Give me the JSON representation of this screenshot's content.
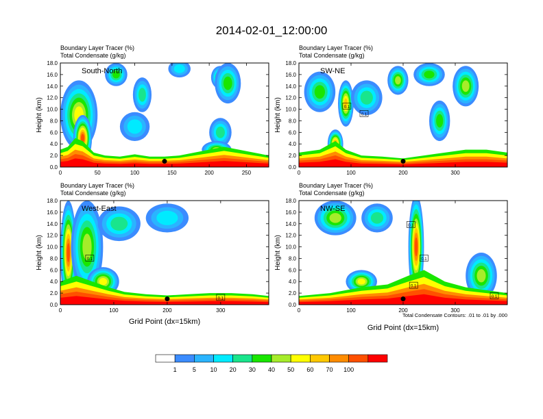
{
  "title": "2014-02-01_12:00:00",
  "chart_data": [
    {
      "type": "heatmap",
      "label": "South-North",
      "title_line1": "Boundary Layer Tracer   (%)",
      "title_line2": "Total Condensate   (g/kg)",
      "ylabel": "Height (km)",
      "xlim": [
        0,
        280
      ],
      "ylim": [
        0,
        18
      ],
      "xticks": [
        0,
        50,
        100,
        150,
        200,
        250
      ],
      "yticks": [
        0,
        2,
        4,
        6,
        8,
        10,
        12,
        14,
        16,
        18
      ],
      "ytick_labels": [
        "0.0",
        "2.0",
        "4.0",
        "6.0",
        "8.0",
        "10.0",
        "12.0",
        "14.0",
        "16.0",
        "18.0"
      ],
      "marker": {
        "x": 140,
        "y": 1.0
      },
      "surface_layer": [
        [
          0,
          3.0
        ],
        [
          10,
          3.5
        ],
        [
          20,
          5.0
        ],
        [
          30,
          4.5
        ],
        [
          45,
          2.5
        ],
        [
          60,
          2.0
        ],
        [
          80,
          1.8
        ],
        [
          100,
          2.2
        ],
        [
          120,
          1.8
        ],
        [
          140,
          1.8
        ],
        [
          160,
          2.0
        ],
        [
          180,
          2.5
        ],
        [
          200,
          3.0
        ],
        [
          220,
          3.5
        ],
        [
          240,
          3.0
        ],
        [
          260,
          2.5
        ],
        [
          280,
          2.0
        ]
      ],
      "blobs": [
        {
          "x": 25,
          "y": 9,
          "w": 50,
          "h": 12,
          "level": 40
        },
        {
          "x": 30,
          "y": 5,
          "w": 25,
          "h": 8,
          "level": 80
        },
        {
          "x": 75,
          "y": 16,
          "w": 30,
          "h": 4,
          "level": 20
        },
        {
          "x": 110,
          "y": 12.5,
          "w": 25,
          "h": 6,
          "level": 10
        },
        {
          "x": 100,
          "y": 7,
          "w": 40,
          "h": 5,
          "level": 5
        },
        {
          "x": 160,
          "y": 17,
          "w": 30,
          "h": 3,
          "level": 5
        },
        {
          "x": 215,
          "y": 15.5,
          "w": 25,
          "h": 4,
          "level": 30
        },
        {
          "x": 225,
          "y": 14.5,
          "w": 35,
          "h": 7,
          "level": 20
        },
        {
          "x": 215,
          "y": 6,
          "w": 30,
          "h": 5,
          "level": 10
        },
        {
          "x": 210,
          "y": 3,
          "w": 40,
          "h": 3,
          "level": 30
        }
      ]
    },
    {
      "type": "heatmap",
      "label": "SW-NE",
      "title_line1": "Boundary Layer Tracer   (%)",
      "title_line2": "Total Condensate   (g/kg)",
      "ylabel": "Height (km)",
      "xlim": [
        0,
        400
      ],
      "ylim": [
        0,
        18
      ],
      "xticks": [
        0,
        100,
        200,
        300
      ],
      "yticks": [
        0,
        2,
        4,
        6,
        8,
        10,
        12,
        14,
        16,
        18
      ],
      "ytick_labels": [
        "0.0",
        "2.0",
        "4.0",
        "6.0",
        "8.0",
        "10.0",
        "12.0",
        "14.0",
        "16.0",
        "18.0"
      ],
      "marker": {
        "x": 200,
        "y": 1.0
      },
      "contour_labels": [
        {
          "x": 92,
          "y": 10.5,
          "text": "0.1"
        },
        {
          "x": 125,
          "y": 9.2,
          "text": "0.1"
        }
      ],
      "surface_layer": [
        [
          0,
          2.5
        ],
        [
          40,
          3.0
        ],
        [
          70,
          4.5
        ],
        [
          90,
          3.0
        ],
        [
          120,
          2.0
        ],
        [
          160,
          1.8
        ],
        [
          200,
          1.5
        ],
        [
          240,
          2.0
        ],
        [
          280,
          2.5
        ],
        [
          320,
          3.0
        ],
        [
          360,
          3.0
        ],
        [
          400,
          2.5
        ]
      ],
      "blobs": [
        {
          "x": 40,
          "y": 13,
          "w": 60,
          "h": 7,
          "level": 20
        },
        {
          "x": 90,
          "y": 11,
          "w": 30,
          "h": 8,
          "level": 50
        },
        {
          "x": 130,
          "y": 12,
          "w": 60,
          "h": 6,
          "level": 10
        },
        {
          "x": 190,
          "y": 15,
          "w": 40,
          "h": 5,
          "level": 30
        },
        {
          "x": 250,
          "y": 16,
          "w": 60,
          "h": 4,
          "level": 20
        },
        {
          "x": 320,
          "y": 14,
          "w": 50,
          "h": 7,
          "level": 30
        },
        {
          "x": 270,
          "y": 8,
          "w": 40,
          "h": 7,
          "level": 20
        },
        {
          "x": 70,
          "y": 4,
          "w": 30,
          "h": 5,
          "level": 60
        }
      ]
    },
    {
      "type": "heatmap",
      "label": "West-East",
      "title_line1": "Boundary Layer Tracer   (%)",
      "title_line2": "Total Condensate   (g/kg)",
      "ylabel": "Height (km)",
      "xlabel": "Grid Point (dx=15km)",
      "xlim": [
        0,
        390
      ],
      "ylim": [
        0,
        18
      ],
      "xticks": [
        0,
        100,
        200,
        300
      ],
      "yticks": [
        0,
        2,
        4,
        6,
        8,
        10,
        12,
        14,
        16,
        18
      ],
      "ytick_labels": [
        "0.0",
        "2.0",
        "4.0",
        "6.0",
        "8.0",
        "10.0",
        "12.0",
        "14.0",
        "16.0",
        "18.0"
      ],
      "marker": {
        "x": 200,
        "y": 1.0
      },
      "contour_labels": [
        {
          "x": 55,
          "y": 8.0,
          "text": "0.1"
        },
        {
          "x": 300,
          "y": 1.2,
          "text": "0.1"
        }
      ],
      "surface_layer": [
        [
          0,
          4.0
        ],
        [
          30,
          5.0
        ],
        [
          60,
          4.0
        ],
        [
          90,
          3.0
        ],
        [
          120,
          2.2
        ],
        [
          160,
          1.8
        ],
        [
          200,
          1.6
        ],
        [
          240,
          1.8
        ],
        [
          280,
          2.0
        ],
        [
          320,
          2.0
        ],
        [
          360,
          1.8
        ],
        [
          390,
          1.5
        ]
      ],
      "blobs": [
        {
          "x": 15,
          "y": 9,
          "w": 30,
          "h": 18,
          "level": 80
        },
        {
          "x": 50,
          "y": 10,
          "w": 60,
          "h": 16,
          "level": 30
        },
        {
          "x": 110,
          "y": 14,
          "w": 80,
          "h": 6,
          "level": 10
        },
        {
          "x": 200,
          "y": 15,
          "w": 80,
          "h": 5,
          "level": 5
        },
        {
          "x": 80,
          "y": 4,
          "w": 60,
          "h": 5,
          "level": 40
        }
      ]
    },
    {
      "type": "heatmap",
      "label": "NW-SE",
      "title_line1": "Boundary Layer Tracer   (%)",
      "title_line2": "Total Condensate   (g/kg)",
      "ylabel": "Height (km)",
      "xlabel": "Grid Point (dx=15km)",
      "xlim": [
        0,
        400
      ],
      "ylim": [
        0,
        18
      ],
      "xticks": [
        0,
        100,
        200,
        300
      ],
      "yticks": [
        0,
        2,
        4,
        6,
        8,
        10,
        12,
        14,
        16,
        18
      ],
      "ytick_labels": [
        "0.0",
        "2.0",
        "4.0",
        "6.0",
        "8.0",
        "10.0",
        "12.0",
        "14.0",
        "16.0",
        "18.0"
      ],
      "marker": {
        "x": 200,
        "y": 1.0
      },
      "footnote": "Total Condensate Contours: .01 to .01 by .000",
      "contour_labels": [
        {
          "x": 215,
          "y": 13.8,
          "text": "0.1"
        },
        {
          "x": 240,
          "y": 8.0,
          "text": "0.1"
        },
        {
          "x": 220,
          "y": 3.3,
          "text": "0.1"
        },
        {
          "x": 375,
          "y": 1.5,
          "text": "0.1"
        }
      ],
      "surface_layer": [
        [
          0,
          1.5
        ],
        [
          60,
          2.0
        ],
        [
          120,
          3.0
        ],
        [
          170,
          3.5
        ],
        [
          210,
          5.0
        ],
        [
          240,
          6.0
        ],
        [
          280,
          4.0
        ],
        [
          320,
          3.0
        ],
        [
          360,
          2.5
        ],
        [
          400,
          2.0
        ]
      ],
      "blobs": [
        {
          "x": 70,
          "y": 15,
          "w": 80,
          "h": 6,
          "level": 30
        },
        {
          "x": 150,
          "y": 15,
          "w": 60,
          "h": 5,
          "level": 10
        },
        {
          "x": 225,
          "y": 10,
          "w": 30,
          "h": 18,
          "level": 80
        },
        {
          "x": 350,
          "y": 5,
          "w": 60,
          "h": 8,
          "level": 30
        },
        {
          "x": 120,
          "y": 4,
          "w": 60,
          "h": 4,
          "level": 40
        }
      ]
    }
  ],
  "colorbar": {
    "labels": [
      "1",
      "5",
      "10",
      "20",
      "30",
      "40",
      "50",
      "60",
      "70",
      "100"
    ],
    "colors": [
      "#ffffff",
      "#3b8cff",
      "#2ab4ff",
      "#00ebff",
      "#19e58c",
      "#19e600",
      "#a6ec2a",
      "#ffff00",
      "#ffc800",
      "#ff8c00",
      "#ff5000",
      "#ff0000"
    ]
  }
}
